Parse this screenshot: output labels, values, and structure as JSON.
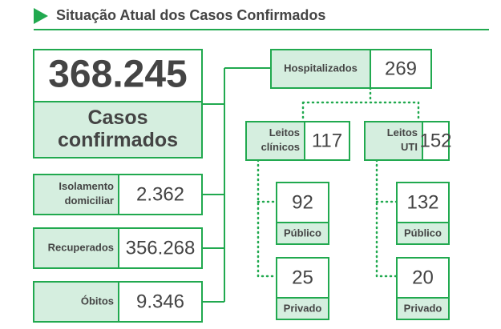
{
  "header": {
    "title": "Situação Atual dos Casos Confirmados"
  },
  "total": {
    "value": "368.245",
    "label": "Casos confirmados"
  },
  "status": [
    {
      "label": "Isolamento domiciliar",
      "value": "2.362"
    },
    {
      "label": "Recuperados",
      "value": "356.268"
    },
    {
      "label": "Óbitos",
      "value": "9.346"
    }
  ],
  "hospitalized": {
    "label": "Hospitalizados",
    "value": "269"
  },
  "beds": [
    {
      "label": "Leitos clínicos",
      "value": "117",
      "public": {
        "value": "92",
        "label": "Público"
      },
      "private": {
        "value": "25",
        "label": "Privado"
      }
    },
    {
      "label": "Leitos UTI",
      "value": "152",
      "public": {
        "value": "132",
        "label": "Público"
      },
      "private": {
        "value": "20",
        "label": "Privado"
      }
    }
  ]
}
